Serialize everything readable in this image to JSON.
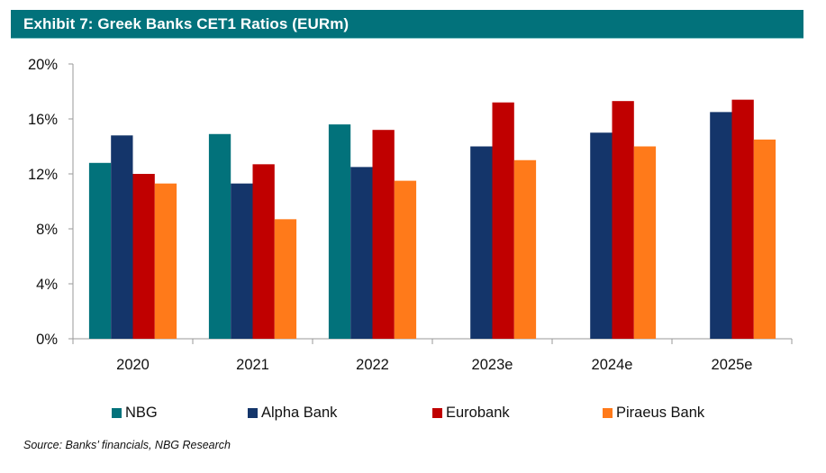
{
  "header": {
    "title": "Exhibit 7: Greek Banks CET1 Ratios (EURm)"
  },
  "source": "Source: Banks’ financials, NBG Research",
  "chart_data": {
    "type": "bar",
    "title": "Exhibit 7: Greek Banks CET1 Ratios (EURm)",
    "xlabel": "",
    "ylabel": "",
    "ylim": [
      0,
      20
    ],
    "yticks": [
      0,
      4,
      8,
      12,
      16,
      20
    ],
    "ytick_labels": [
      "0%",
      "4%",
      "8%",
      "12%",
      "16%",
      "20%"
    ],
    "grid": false,
    "legend_position": "bottom",
    "categories": [
      "2020",
      "2021",
      "2022",
      "2023e",
      "2024e",
      "2025e"
    ],
    "series": [
      {
        "name": "NBG",
        "color": "#02727b",
        "values": [
          12.8,
          14.9,
          15.6,
          null,
          null,
          null
        ]
      },
      {
        "name": "Alpha Bank",
        "color": "#14356a",
        "values": [
          14.8,
          11.3,
          12.5,
          14.0,
          15.0,
          16.5
        ]
      },
      {
        "name": "Eurobank",
        "color": "#c00000",
        "values": [
          12.0,
          12.7,
          15.2,
          17.2,
          17.3,
          17.4
        ]
      },
      {
        "name": "Piraeus Bank",
        "color": "#ff7a1a",
        "values": [
          11.3,
          8.7,
          11.5,
          13.0,
          14.0,
          14.5
        ]
      }
    ]
  }
}
